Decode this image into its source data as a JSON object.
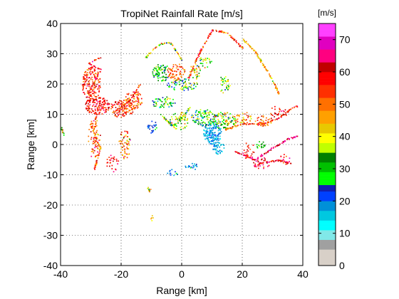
{
  "chart_data": {
    "type": "heatmap",
    "title": "TropiNet Rainfall Rate [m/s]",
    "xlabel": "Range [km]",
    "ylabel": "Range [km]",
    "xlim": [
      -40,
      40
    ],
    "ylim": [
      -40,
      40
    ],
    "xticks": [
      -40,
      -20,
      0,
      20,
      40
    ],
    "yticks": [
      -40,
      -30,
      -20,
      -10,
      0,
      10,
      20,
      30,
      40
    ],
    "x_tick_labels": [
      "-40",
      "-20",
      "0",
      "20",
      "40"
    ],
    "y_tick_labels": [
      "-40",
      "-30",
      "-20",
      "-10",
      "0",
      "10",
      "20",
      "30",
      "40"
    ],
    "grid": true,
    "grid_style": "dotted",
    "colorbar": {
      "label": "[m/s]",
      "min": 0,
      "max": 75,
      "ticks": [
        0,
        10,
        20,
        30,
        40,
        50,
        60,
        70
      ],
      "tick_labels": [
        "0",
        "10",
        "20",
        "30",
        "40",
        "50",
        "60",
        "70"
      ],
      "stops": [
        {
          "value": 0,
          "color": "#d8d0c8"
        },
        {
          "value": 5,
          "color": "#a0a0a0"
        },
        {
          "value": 8,
          "color": "#80e8e8"
        },
        {
          "value": 11,
          "color": "#00ffff"
        },
        {
          "value": 14,
          "color": "#00c8e0"
        },
        {
          "value": 17,
          "color": "#0090d8"
        },
        {
          "value": 20,
          "color": "#0040ff"
        },
        {
          "value": 23,
          "color": "#1020b0"
        },
        {
          "value": 25,
          "color": "#00ff00"
        },
        {
          "value": 29,
          "color": "#00c000"
        },
        {
          "value": 32,
          "color": "#008000"
        },
        {
          "value": 35,
          "color": "#c0ff00"
        },
        {
          "value": 38,
          "color": "#ffff00"
        },
        {
          "value": 41,
          "color": "#e8c800"
        },
        {
          "value": 44,
          "color": "#ffa000"
        },
        {
          "value": 48,
          "color": "#ff7000"
        },
        {
          "value": 52,
          "color": "#ff3000"
        },
        {
          "value": 56,
          "color": "#ff0000"
        },
        {
          "value": 60,
          "color": "#c00000"
        },
        {
          "value": 63,
          "color": "#ff0080"
        },
        {
          "value": 67,
          "color": "#e000c0"
        },
        {
          "value": 71,
          "color": "#ff40ff"
        },
        {
          "value": 75,
          "color": "#ffe0ff"
        }
      ]
    },
    "regions": [
      {
        "x": -30,
        "y": 20,
        "rx": 3,
        "ry": 6,
        "value": 55,
        "spread": 18,
        "density": 0.55
      },
      {
        "x": -28,
        "y": 13,
        "rx": 4,
        "ry": 3,
        "value": 58,
        "spread": 12,
        "density": 0.65
      },
      {
        "x": -20,
        "y": 12,
        "rx": 4,
        "ry": 3,
        "value": 55,
        "spread": 15,
        "density": 0.55
      },
      {
        "x": -16,
        "y": 15,
        "rx": 3,
        "ry": 3,
        "value": 52,
        "spread": 20,
        "density": 0.45
      },
      {
        "x": -29,
        "y": 2,
        "rx": 2,
        "ry": 7,
        "value": 52,
        "spread": 22,
        "density": 0.3
      },
      {
        "x": -19,
        "y": 0,
        "rx": 2,
        "ry": 5,
        "value": 50,
        "spread": 22,
        "density": 0.35
      },
      {
        "x": -23,
        "y": -6,
        "rx": 2,
        "ry": 3,
        "value": 60,
        "spread": 10,
        "density": 0.25
      },
      {
        "x": -7,
        "y": 24,
        "rx": 3,
        "ry": 3,
        "value": 30,
        "spread": 12,
        "density": 0.5
      },
      {
        "x": -2,
        "y": 24,
        "rx": 3,
        "ry": 3,
        "value": 50,
        "spread": 15,
        "density": 0.45
      },
      {
        "x": 0,
        "y": 20,
        "rx": 5,
        "ry": 2,
        "value": 30,
        "spread": 25,
        "density": 0.4
      },
      {
        "x": -6,
        "y": 14,
        "rx": 4,
        "ry": 2,
        "value": 28,
        "spread": 20,
        "density": 0.4
      },
      {
        "x": 4,
        "y": 24,
        "rx": 2,
        "ry": 3,
        "value": 40,
        "spread": 20,
        "density": 0.3
      },
      {
        "x": 7,
        "y": 27,
        "rx": 3,
        "ry": 2,
        "value": 35,
        "spread": 20,
        "density": 0.25
      },
      {
        "x": 14,
        "y": 20,
        "rx": 2,
        "ry": 3,
        "value": 35,
        "spread": 20,
        "density": 0.3
      },
      {
        "x": -10,
        "y": 6,
        "rx": 2,
        "ry": 2,
        "value": 22,
        "spread": 10,
        "density": 0.4
      },
      {
        "x": -1,
        "y": 8,
        "rx": 3,
        "ry": 3,
        "value": 38,
        "spread": 25,
        "density": 0.35
      },
      {
        "x": 7,
        "y": 9,
        "rx": 4,
        "ry": 3,
        "value": 30,
        "spread": 22,
        "density": 0.5
      },
      {
        "x": 10,
        "y": 4,
        "rx": 3,
        "ry": 4,
        "value": 18,
        "spread": 8,
        "density": 0.75
      },
      {
        "x": 14,
        "y": 8,
        "rx": 4,
        "ry": 3,
        "value": 35,
        "spread": 25,
        "density": 0.5
      },
      {
        "x": 12,
        "y": -1,
        "rx": 2,
        "ry": 2,
        "value": 17,
        "spread": 6,
        "density": 0.55
      },
      {
        "x": 20,
        "y": 9,
        "rx": 3,
        "ry": 2,
        "value": 50,
        "spread": 20,
        "density": 0.35
      },
      {
        "x": 27,
        "y": 8,
        "rx": 3,
        "ry": 2,
        "value": 52,
        "spread": 20,
        "density": 0.35
      },
      {
        "x": 26,
        "y": 0,
        "rx": 1.5,
        "ry": 1.5,
        "value": 30,
        "spread": 10,
        "density": 0.4
      },
      {
        "x": 26,
        "y": -6,
        "rx": 3,
        "ry": 2,
        "value": 60,
        "spread": 15,
        "density": 0.3
      },
      {
        "x": 22,
        "y": -2,
        "rx": 2,
        "ry": 3,
        "value": 60,
        "spread": 15,
        "density": 0.25
      },
      {
        "x": 34,
        "y": -5,
        "rx": 2,
        "ry": 2,
        "value": 60,
        "spread": 15,
        "density": 0.25
      },
      {
        "x": -3,
        "y": -9,
        "rx": 2,
        "ry": 1,
        "value": 20,
        "spread": 10,
        "density": 0.35
      },
      {
        "x": 3,
        "y": -7,
        "rx": 2,
        "ry": 1.5,
        "value": 20,
        "spread": 10,
        "density": 0.35
      },
      {
        "x": -11,
        "y": -15,
        "rx": 1,
        "ry": 1,
        "value": 40,
        "spread": 15,
        "density": 0.4
      },
      {
        "x": -10,
        "y": -24,
        "rx": 0.6,
        "ry": 1,
        "value": 45,
        "spread": 10,
        "density": 0.45
      },
      {
        "x": 32,
        "y": 11,
        "rx": 3,
        "ry": 2,
        "value": 58,
        "spread": 12,
        "density": 0.25
      }
    ],
    "edges": [
      {
        "points": [
          [
            2,
            22
          ],
          [
            6,
            31
          ],
          [
            10,
            38
          ],
          [
            15,
            37
          ],
          [
            20,
            32
          ]
        ],
        "value": 55,
        "spread": 20
      },
      {
        "points": [
          [
            -12,
            29
          ],
          [
            -8,
            33
          ],
          [
            -4,
            34
          ],
          [
            0,
            28
          ]
        ],
        "value": 40,
        "spread": 25
      },
      {
        "points": [
          [
            20,
            35
          ],
          [
            24,
            31
          ],
          [
            29,
            23
          ],
          [
            32,
            17
          ]
        ],
        "value": 45,
        "spread": 20
      },
      {
        "points": [
          [
            24,
            -5
          ],
          [
            30,
            -1
          ],
          [
            35,
            2
          ],
          [
            38,
            3
          ]
        ],
        "value": 65,
        "spread": 12
      },
      {
        "points": [
          [
            17,
            -2
          ],
          [
            22,
            -4
          ],
          [
            26,
            -6
          ],
          [
            32,
            -5
          ],
          [
            36,
            -6
          ]
        ],
        "value": 60,
        "spread": 15
      },
      {
        "points": [
          [
            14,
            5
          ],
          [
            20,
            7
          ],
          [
            27,
            7
          ],
          [
            32,
            9
          ],
          [
            36,
            12
          ],
          [
            38,
            13
          ]
        ],
        "value": 55,
        "spread": 18
      },
      {
        "points": [
          [
            -29,
            -8
          ],
          [
            -27,
            -1
          ],
          [
            -30,
            6
          ],
          [
            -28,
            10
          ]
        ],
        "value": 50,
        "spread": 22
      },
      {
        "points": [
          [
            -31,
            17
          ],
          [
            -27,
            25
          ],
          [
            -31,
            27
          ],
          [
            -27,
            29
          ]
        ],
        "value": 58,
        "spread": 15
      },
      {
        "points": [
          [
            -22,
            11
          ],
          [
            -17,
            15
          ],
          [
            -14,
            20
          ]
        ],
        "value": 55,
        "spread": 15
      },
      {
        "points": [
          [
            -40,
            6
          ],
          [
            -39,
            3
          ]
        ],
        "value": 40,
        "spread": 20
      },
      {
        "points": [
          [
            -7,
            10
          ],
          [
            -3,
            6
          ],
          [
            0,
            9
          ],
          [
            3,
            13
          ]
        ],
        "value": 35,
        "spread": 22
      }
    ]
  }
}
